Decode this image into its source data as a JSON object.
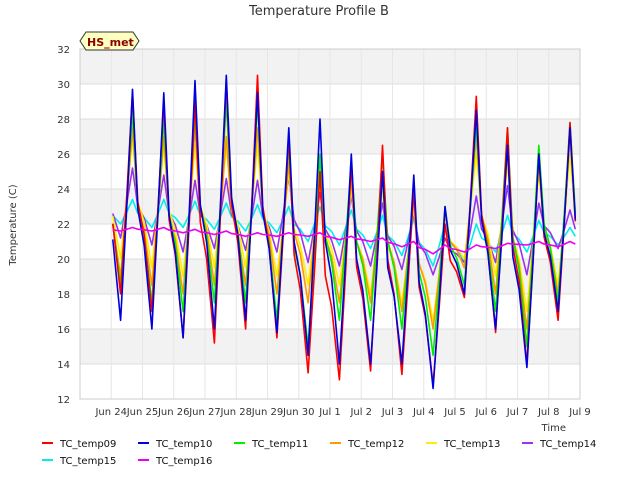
{
  "chart_data": {
    "type": "line",
    "title": "Temperature Profile B",
    "xlabel": "Time",
    "ylabel": "Temperature (C)",
    "badge": "HS_met",
    "ylim": [
      12,
      32
    ],
    "yticks": [
      12,
      14,
      16,
      18,
      20,
      22,
      24,
      26,
      28,
      30,
      32
    ],
    "xlim": [
      "Jun 23",
      "Jul 9"
    ],
    "xticks": [
      "Jun 24",
      "Jun 25",
      "Jun 26",
      "Jun 27",
      "Jun 28",
      "Jun 29",
      "Jun 30",
      "Jul 1",
      "Jul 2",
      "Jul 3",
      "Jul 4",
      "Jul 5",
      "Jul 6",
      "Jul 7",
      "Jul 8",
      "Jul 9"
    ],
    "grid": true,
    "legend_position": "bottom",
    "daily_dates": [
      "Jun 24",
      "Jun 25",
      "Jun 26",
      "Jun 27",
      "Jun 28",
      "Jun 29",
      "Jun 30",
      "Jul 1",
      "Jul 2",
      "Jul 3",
      "Jul 4",
      "Jul 5",
      "Jul 6",
      "Jul 7",
      "Jul 8"
    ],
    "series": [
      {
        "name": "TC_temp09",
        "color": "#ff0000",
        "max": [
          29.5,
          29.0,
          29.0,
          30.2,
          30.5,
          27.0,
          25.0,
          25.5,
          26.5,
          24.0,
          22.0,
          29.3,
          27.5,
          26.0,
          27.8
        ],
        "min": [
          18.0,
          17.0,
          15.5,
          15.2,
          16.0,
          15.5,
          13.5,
          13.1,
          13.6,
          13.4,
          12.8,
          17.8,
          15.8,
          14.0,
          16.5
        ]
      },
      {
        "name": "TC_temp10",
        "color": "#0000dd",
        "max": [
          29.7,
          29.5,
          30.2,
          30.5,
          29.5,
          27.5,
          28.0,
          26.0,
          25.0,
          24.8,
          23.0,
          28.5,
          26.5,
          26.0,
          27.5
        ],
        "min": [
          16.5,
          16.0,
          15.5,
          16.0,
          16.5,
          15.8,
          14.5,
          14.0,
          14.0,
          14.0,
          12.6,
          18.0,
          16.0,
          13.8,
          17.0
        ]
      },
      {
        "name": "TC_temp11",
        "color": "#00ee00",
        "max": [
          28.5,
          28.0,
          28.5,
          29.0,
          29.0,
          26.5,
          26.0,
          25.5,
          26.0,
          24.0,
          23.0,
          27.8,
          27.5,
          26.5,
          27.8
        ],
        "min": [
          18.5,
          17.5,
          17.0,
          17.5,
          17.5,
          16.5,
          15.0,
          16.5,
          16.5,
          16.0,
          14.5,
          18.5,
          17.0,
          15.0,
          17.5
        ]
      },
      {
        "name": "TC_temp12",
        "color": "#ff9900",
        "max": [
          27.5,
          27.0,
          27.5,
          27.0,
          27.5,
          25.5,
          25.0,
          24.5,
          25.0,
          23.5,
          22.5,
          27.0,
          26.5,
          25.5,
          27.0
        ],
        "min": [
          19.0,
          18.5,
          18.0,
          18.5,
          18.5,
          18.0,
          17.5,
          17.5,
          17.5,
          17.0,
          16.0,
          19.5,
          18.0,
          16.0,
          18.0
        ]
      },
      {
        "name": "TC_temp13",
        "color": "#ffee00",
        "max": [
          27.0,
          26.5,
          26.5,
          26.5,
          26.5,
          25.0,
          24.5,
          24.0,
          24.0,
          23.0,
          22.0,
          26.0,
          25.5,
          25.0,
          26.0
        ],
        "min": [
          20.0,
          19.5,
          19.0,
          19.5,
          19.5,
          19.0,
          18.5,
          18.5,
          18.0,
          17.5,
          16.5,
          20.0,
          19.0,
          17.0,
          18.5
        ]
      },
      {
        "name": "TC_temp14",
        "color": "#9933ee",
        "max": [
          25.2,
          24.8,
          24.5,
          24.6,
          24.5,
          24.7,
          23.8,
          23.6,
          23.2,
          22.6,
          21.2,
          23.6,
          24.2,
          23.2,
          22.8
        ],
        "min": [
          21.2,
          20.8,
          20.4,
          20.6,
          20.5,
          20.4,
          19.8,
          19.6,
          19.6,
          19.4,
          19.1,
          19.8,
          19.8,
          19.1,
          20.6
        ]
      },
      {
        "name": "TC_temp15",
        "color": "#00eeee",
        "max": [
          23.4,
          23.4,
          23.3,
          23.2,
          23.1,
          23.0,
          23.0,
          22.8,
          22.5,
          22.3,
          22.0,
          22.0,
          22.5,
          22.2,
          21.8
        ],
        "min": [
          22.0,
          21.8,
          21.8,
          21.7,
          21.6,
          21.5,
          21.0,
          20.8,
          20.6,
          20.2,
          19.6,
          19.8,
          20.4,
          20.4,
          20.8
        ]
      },
      {
        "name": "TC_temp16",
        "color": "#ee00ee",
        "max": [
          21.8,
          21.8,
          21.7,
          21.6,
          21.5,
          21.5,
          21.5,
          21.3,
          21.2,
          21.0,
          20.8,
          20.8,
          20.9,
          21.0,
          21.0
        ],
        "min": [
          21.6,
          21.6,
          21.5,
          21.4,
          21.3,
          21.3,
          21.3,
          21.1,
          21.0,
          20.7,
          20.3,
          20.4,
          20.6,
          20.8,
          20.7
        ]
      }
    ]
  }
}
